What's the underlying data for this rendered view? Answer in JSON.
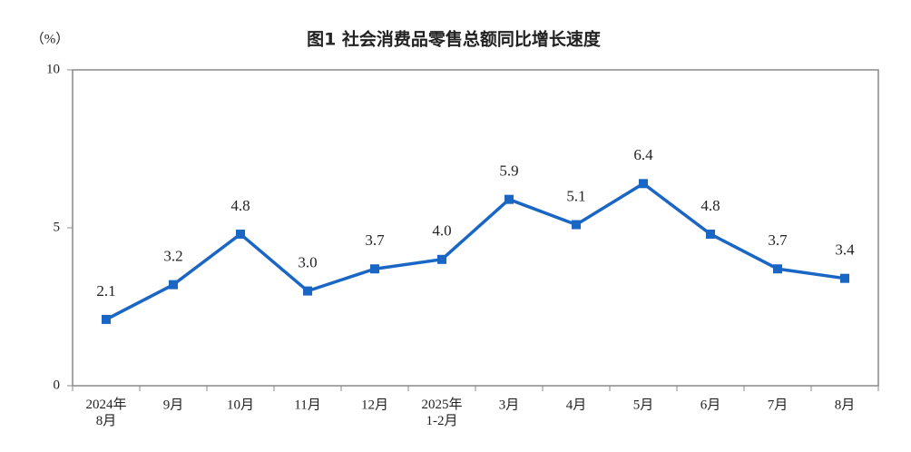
{
  "chart_data": {
    "type": "line",
    "title": "图1 社会消费品零售总额同比增长速度",
    "y_unit": "（%）",
    "categories": [
      "2024年\n8月",
      "9月",
      "10月",
      "11月",
      "12月",
      "2025年\n1-2月",
      "3月",
      "4月",
      "5月",
      "6月",
      "7月",
      "8月"
    ],
    "values": [
      2.1,
      3.2,
      4.8,
      3.0,
      3.7,
      4.0,
      5.9,
      5.1,
      6.4,
      4.8,
      3.7,
      3.4
    ],
    "value_labels": [
      "2.1",
      "3.2",
      "4.8",
      "3.0",
      "3.7",
      "4.0",
      "5.9",
      "5.1",
      "6.4",
      "4.8",
      "3.7",
      "3.4"
    ],
    "color": "#1a66c4",
    "ylim": [
      0,
      10
    ],
    "yticks": [
      0,
      5,
      10
    ]
  }
}
